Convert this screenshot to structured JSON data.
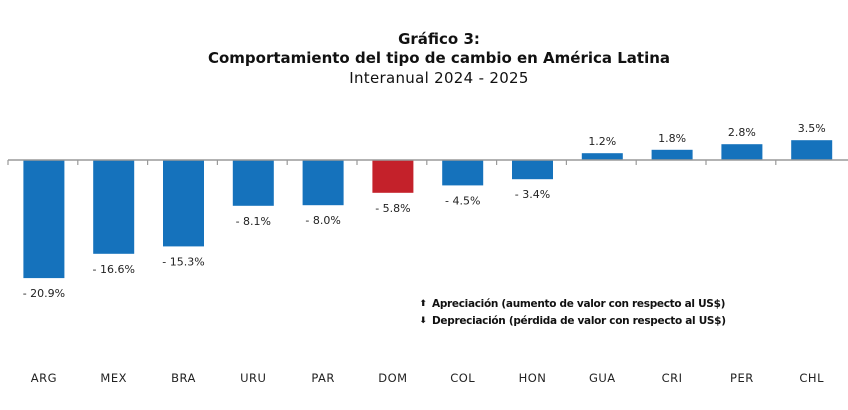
{
  "chart_data": {
    "type": "bar",
    "title": "Gráfico 3:",
    "subtitle": "Comportamiento del tipo de cambio en América Latina",
    "subtitle2": "Interanual 2024 - 2025",
    "xlabel": "",
    "ylabel": "",
    "categories": [
      "ARG",
      "MEX",
      "BRA",
      "URU",
      "PAR",
      "DOM",
      "COL",
      "HON",
      "GUA",
      "CRI",
      "PER",
      "CHL"
    ],
    "values": [
      -20.9,
      -16.6,
      -15.3,
      -8.1,
      -8.0,
      -5.8,
      -4.5,
      -3.4,
      1.2,
      1.8,
      2.8,
      3.5
    ],
    "data_labels": [
      "- 20.9%",
      "- 16.6%",
      "- 15.3%",
      "- 8.1%",
      "- 8.0%",
      "- 5.8%",
      "- 4.5%",
      "- 3.4%",
      "1.2%",
      "1.8%",
      "2.8%",
      "3.5%"
    ],
    "highlight_category": "DOM",
    "ylim": [
      -21,
      3.5
    ],
    "grid": false,
    "y_axis_visible": false,
    "legend_position": "bottom-right",
    "legend": [
      {
        "icon": "arrow-up-icon",
        "glyph": "⬆",
        "label": "Apreciación (aumento de valor con respecto al US$)"
      },
      {
        "icon": "arrow-down-icon",
        "glyph": "⬇",
        "label": "Depreciación (pérdida de valor con respecto al US$)"
      }
    ],
    "colors": {
      "bar": "#1572BC",
      "highlight": "#C4212A",
      "axis": "#9a9a9a",
      "text": "#222222"
    }
  }
}
